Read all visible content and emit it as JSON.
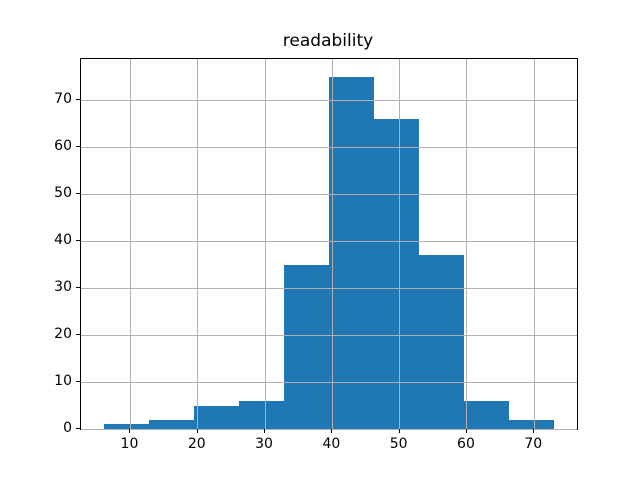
{
  "chart_data": {
    "type": "bar",
    "subtype": "histogram",
    "title": "readability",
    "xlabel": "",
    "ylabel": "",
    "bin_edges": [
      6.0,
      12.7,
      19.4,
      26.1,
      32.8,
      39.5,
      46.2,
      52.9,
      59.6,
      66.3,
      73.0
    ],
    "counts": [
      1,
      2,
      5,
      6,
      35,
      75,
      66,
      37,
      6,
      2
    ],
    "x_ticks": [
      10,
      20,
      30,
      40,
      50,
      60,
      70
    ],
    "y_ticks": [
      0,
      10,
      20,
      30,
      40,
      50,
      60,
      70
    ],
    "xlim": [
      2.65,
      76.35
    ],
    "ylim": [
      0,
      78.75
    ],
    "grid": true,
    "grid_over_bars": true,
    "legend": "none",
    "bar_color": "#1f77b4",
    "grid_color": "#b0b0b0",
    "spine_color": "#000000",
    "background_color": "#ffffff"
  }
}
